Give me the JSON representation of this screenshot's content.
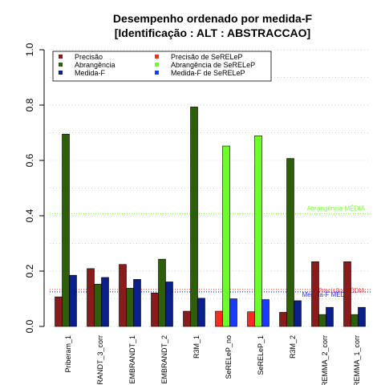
{
  "chart_data": {
    "type": "bar",
    "title_line1": "Desempenho ordenado por medida-F",
    "title_line2": "[Identificação : ALT : ABSTRACCAO]",
    "ylim": [
      0,
      1
    ],
    "yticks": [
      "0.0",
      "0.2",
      "0.4",
      "0.6",
      "0.8",
      "1.0"
    ],
    "grid": "horizontal dotted",
    "categories": [
      "Priberam_1",
      "RANDT_3_corr",
      "EMBRANDT_1",
      "EMBRANDT_2",
      "R3M_1",
      "SeRELeP_no",
      "SeRELeP_1",
      "R3M_2",
      "REMMA_2_corr",
      "REMMA_1_corr"
    ],
    "series": [
      {
        "name": "Precisão",
        "color": "#8b1a1a",
        "values": [
          0.107,
          0.209,
          0.224,
          0.121,
          0.055,
          null,
          null,
          0.051,
          0.234,
          0.234
        ]
      },
      {
        "name": "Abrangência",
        "color": "#2d5e0a",
        "values": [
          0.695,
          0.153,
          0.138,
          0.243,
          0.793,
          null,
          null,
          0.607,
          0.043,
          0.043
        ]
      },
      {
        "name": "Medida-F",
        "color": "#0a1f8c",
        "values": [
          0.185,
          0.177,
          0.17,
          0.161,
          0.102,
          null,
          null,
          0.093,
          0.069,
          0.069
        ]
      },
      {
        "name": "Precisão  de  SeRELeP",
        "color": "#ff2a1a",
        "values": [
          null,
          null,
          null,
          null,
          null,
          0.055,
          0.053,
          null,
          null,
          null
        ]
      },
      {
        "name": "Abrangência  de  SeRELeP",
        "color": "#6dff2a",
        "values": [
          null,
          null,
          null,
          null,
          null,
          0.652,
          0.689,
          null,
          null,
          null
        ]
      },
      {
        "name": "Medida-F  de  SeRELeP",
        "color": "#1a3aff",
        "values": [
          null,
          null,
          null,
          null,
          null,
          0.1,
          0.097,
          null,
          null,
          null
        ]
      }
    ],
    "reference_lines": [
      {
        "label": "Abrangência MÉDIA",
        "value": 0.407,
        "color": "#7dff3a"
      },
      {
        "label": "Precisão MÉDIA",
        "value": 0.134,
        "color": "#ff5a5a"
      },
      {
        "label": "Medida-F MÉDIA",
        "value": 0.125,
        "color": "#2a2aff"
      }
    ],
    "legend": {
      "placement": "top-left",
      "columns": [
        [
          "Precisão",
          "Abrangência",
          "Medida-F"
        ],
        [
          "Precisão  de  SeRELeP",
          "Abrangência  de  SeRELeP",
          "Medida-F  de  SeRELeP"
        ]
      ]
    }
  }
}
